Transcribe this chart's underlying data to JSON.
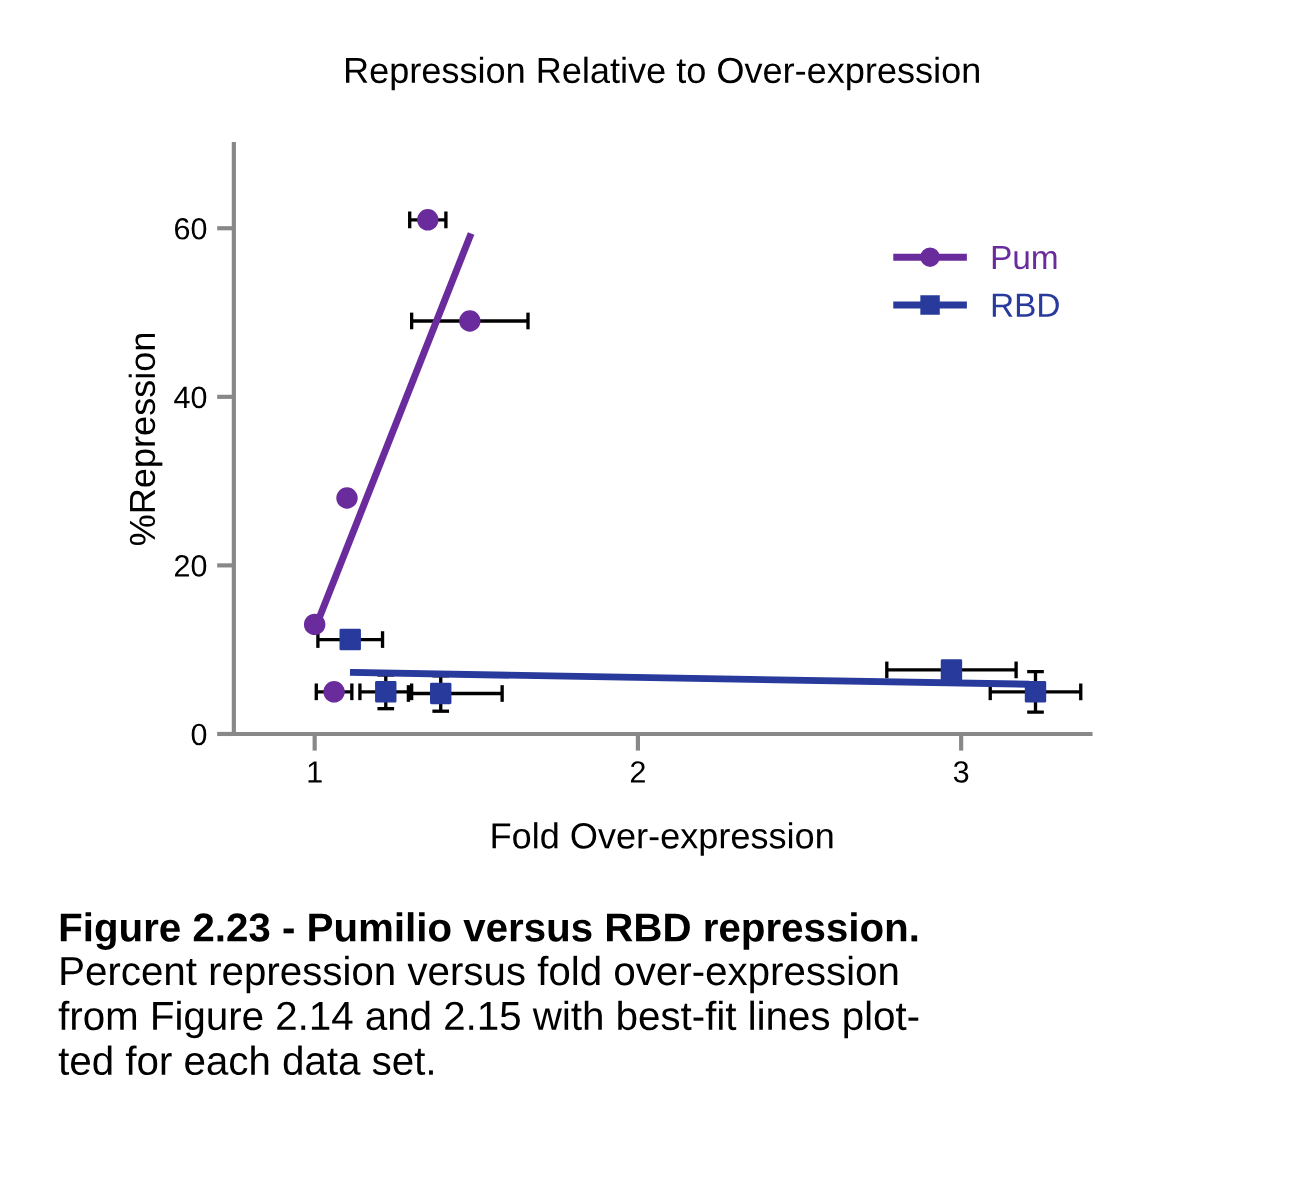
{
  "chart_data": {
    "type": "scatter",
    "title": "Repression Relative to Over-expression",
    "xlabel": "Fold Over-expression",
    "ylabel": "%Repression",
    "xlim": [
      0.75,
      3.4
    ],
    "ylim": [
      0,
      70
    ],
    "xticks": [
      1,
      2,
      3
    ],
    "yticks": [
      0,
      20,
      40,
      60
    ],
    "grid": false,
    "legend": "top right",
    "series": [
      {
        "name": "Pum",
        "color": "#6a2b9c",
        "marker": "circle",
        "x": [
          1.35,
          1.48,
          1.1,
          1.0,
          1.06
        ],
        "values": [
          61,
          49,
          28,
          13,
          5
        ],
        "xerrors": [
          0.056,
          0.18,
          null,
          null,
          0.055
        ],
        "errors": [
          null,
          null,
          null,
          null,
          null
        ]
      },
      {
        "name": "RBD",
        "color": "#283a9c",
        "marker": "square",
        "x": [
          1.11,
          1.22,
          1.39,
          2.97,
          3.23
        ],
        "values": [
          11.2,
          5.0,
          4.8,
          7.6,
          5.0
        ],
        "xerrors": [
          0.1,
          0.08,
          [
            1.29,
            1.58
          ],
          0.2,
          0.14
        ],
        "errors": [
          null,
          2,
          2.1,
          null,
          2.4
        ]
      },
      {
        "color": "#6a2b9c",
        "type": "line",
        "marker": "none",
        "x": [
          1.0,
          1.48
        ],
        "values": [
          12.4,
          59
        ]
      },
      {
        "color": "#283a9c",
        "type": "line",
        "marker": "none",
        "x": [
          1.12,
          3.2
        ],
        "values": [
          7.3,
          5.9
        ]
      }
    ],
    "annotations": [
      "Figure 2.23 - Pumilio versus RBD repression.",
      "Percent repression versus fold over-expression\nfrom Figure 2.14 and 2.15 with best-fit lines plot-\nted for each data set."
    ]
  }
}
